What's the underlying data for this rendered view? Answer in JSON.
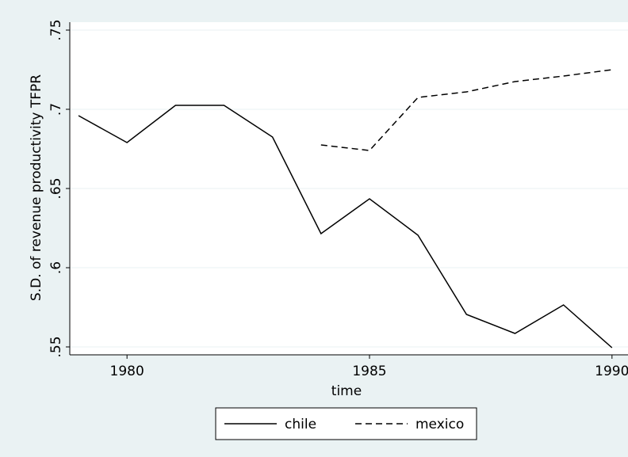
{
  "chart_data": {
    "type": "line",
    "x_label": "time",
    "y_label": "S.D. of revenue productivity TFPR",
    "x": [
      1979,
      1980,
      1981,
      1982,
      1983,
      1984,
      1985,
      1986,
      1987,
      1988,
      1989,
      1990
    ],
    "series": [
      {
        "name": "chile",
        "color": "#000000",
        "line_style": "solid",
        "values": [
          0.696,
          0.679,
          0.7025,
          0.7025,
          0.6825,
          0.6215,
          0.6435,
          0.6205,
          0.5705,
          0.5585,
          0.5765,
          0.5495
        ]
      },
      {
        "name": "mexico",
        "color": "#000000",
        "line_style": "dashed",
        "values": [
          null,
          null,
          null,
          null,
          null,
          0.6775,
          0.674,
          0.7075,
          0.711,
          0.7175,
          0.721,
          0.725
        ]
      }
    ],
    "xlim": [
      1978.82,
      1990.33
    ],
    "xticks": [
      1980,
      1985,
      1990
    ],
    "ylim": [
      0.545,
      0.755
    ],
    "yticks": [
      {
        "value": 0.55,
        "label": ".55"
      },
      {
        "value": 0.6,
        "label": ".6"
      },
      {
        "value": 0.65,
        "label": ".65"
      },
      {
        "value": 0.7,
        "label": ".7"
      },
      {
        "value": 0.75,
        "label": ".75"
      }
    ],
    "grid": true,
    "legend_position": "bottom"
  }
}
